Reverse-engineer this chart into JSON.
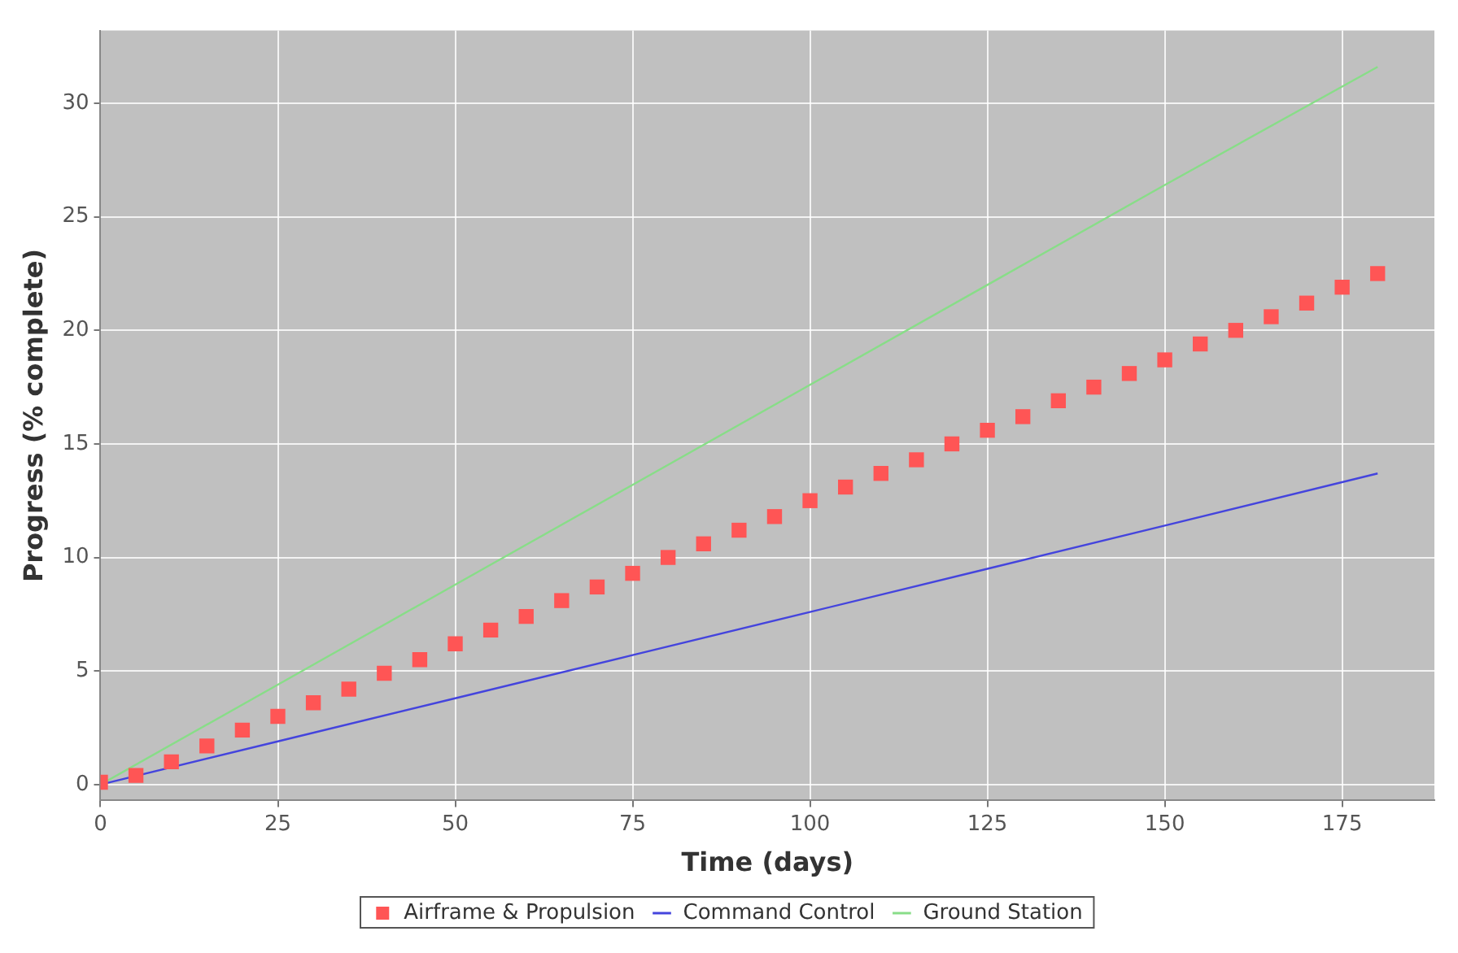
{
  "chart_data": {
    "type": "line",
    "xlabel": "Time (days)",
    "ylabel": "Progress (% complete)",
    "xlim": [
      0,
      188
    ],
    "ylim": [
      -0.7,
      33.2
    ],
    "xticks": [
      0,
      25,
      50,
      75,
      100,
      125,
      150,
      175
    ],
    "yticks": [
      0,
      5,
      10,
      15,
      20,
      25,
      30
    ],
    "grid": true,
    "legend": "bottom",
    "series": [
      {
        "name": "Airframe & Propulsion",
        "type": "scatter",
        "marker": "square",
        "color": "#ff5555",
        "x": [
          0,
          5,
          10,
          15,
          20,
          25,
          30,
          35,
          40,
          45,
          50,
          55,
          60,
          65,
          70,
          75,
          80,
          85,
          90,
          95,
          100,
          105,
          110,
          115,
          120,
          125,
          130,
          135,
          140,
          145,
          150,
          155,
          160,
          165,
          170,
          175,
          180
        ],
        "values": [
          0.1,
          0.4,
          1.0,
          1.7,
          2.4,
          3.0,
          3.6,
          4.2,
          4.9,
          5.5,
          6.2,
          6.8,
          7.4,
          8.1,
          8.7,
          9.3,
          10.0,
          10.6,
          11.2,
          11.8,
          12.5,
          13.1,
          13.7,
          14.3,
          15.0,
          15.6,
          16.2,
          16.9,
          17.5,
          18.1,
          18.7,
          19.4,
          20.0,
          20.6,
          21.2,
          21.9,
          22.5
        ]
      },
      {
        "name": "Command Control",
        "type": "line",
        "marker": "none",
        "color": "#4444dd",
        "x": [
          0,
          25,
          50,
          75,
          100,
          125,
          150,
          180
        ],
        "values": [
          0,
          1.9,
          3.8,
          5.7,
          7.6,
          9.5,
          11.4,
          13.7
        ]
      },
      {
        "name": "Ground Station",
        "type": "line",
        "marker": "none",
        "color": "#88dd88",
        "x": [
          0,
          25,
          50,
          75,
          100,
          125,
          150,
          180
        ],
        "values": [
          0,
          4.4,
          8.8,
          13.2,
          17.6,
          22.0,
          26.4,
          31.6
        ]
      }
    ]
  }
}
